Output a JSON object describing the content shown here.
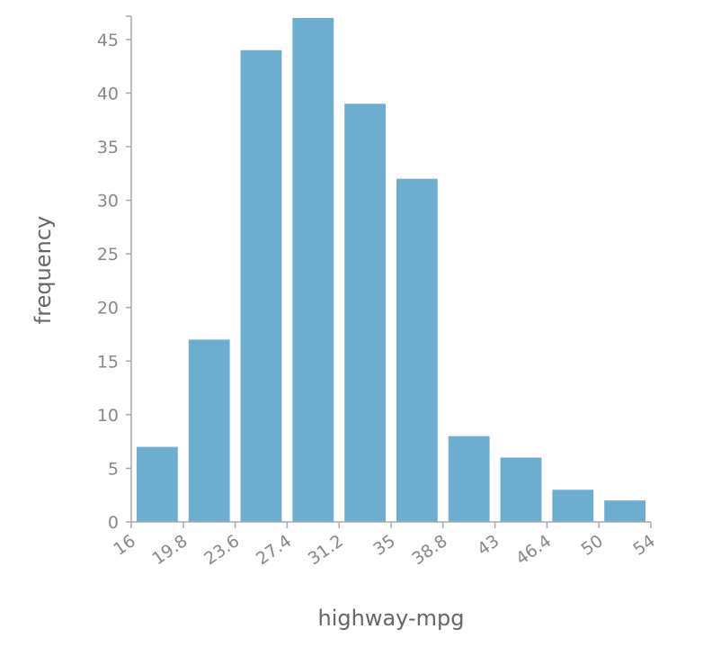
{
  "chart_data": {
    "type": "bar",
    "xlabel": "highway-mpg",
    "ylabel": "frequency",
    "bin_edges": [
      "16",
      "19.8",
      "23.6",
      "27.4",
      "31.2",
      "35",
      "38.8",
      "43",
      "46.4",
      "50",
      "54"
    ],
    "values": [
      7,
      17,
      44,
      47,
      39,
      32,
      8,
      6,
      3,
      2
    ],
    "y_ticks": [
      "0",
      "5",
      "10",
      "15",
      "20",
      "25",
      "30",
      "35",
      "40",
      "45"
    ],
    "ylim": [
      0,
      47
    ],
    "grid": false,
    "bar_color": "#6daed0"
  }
}
